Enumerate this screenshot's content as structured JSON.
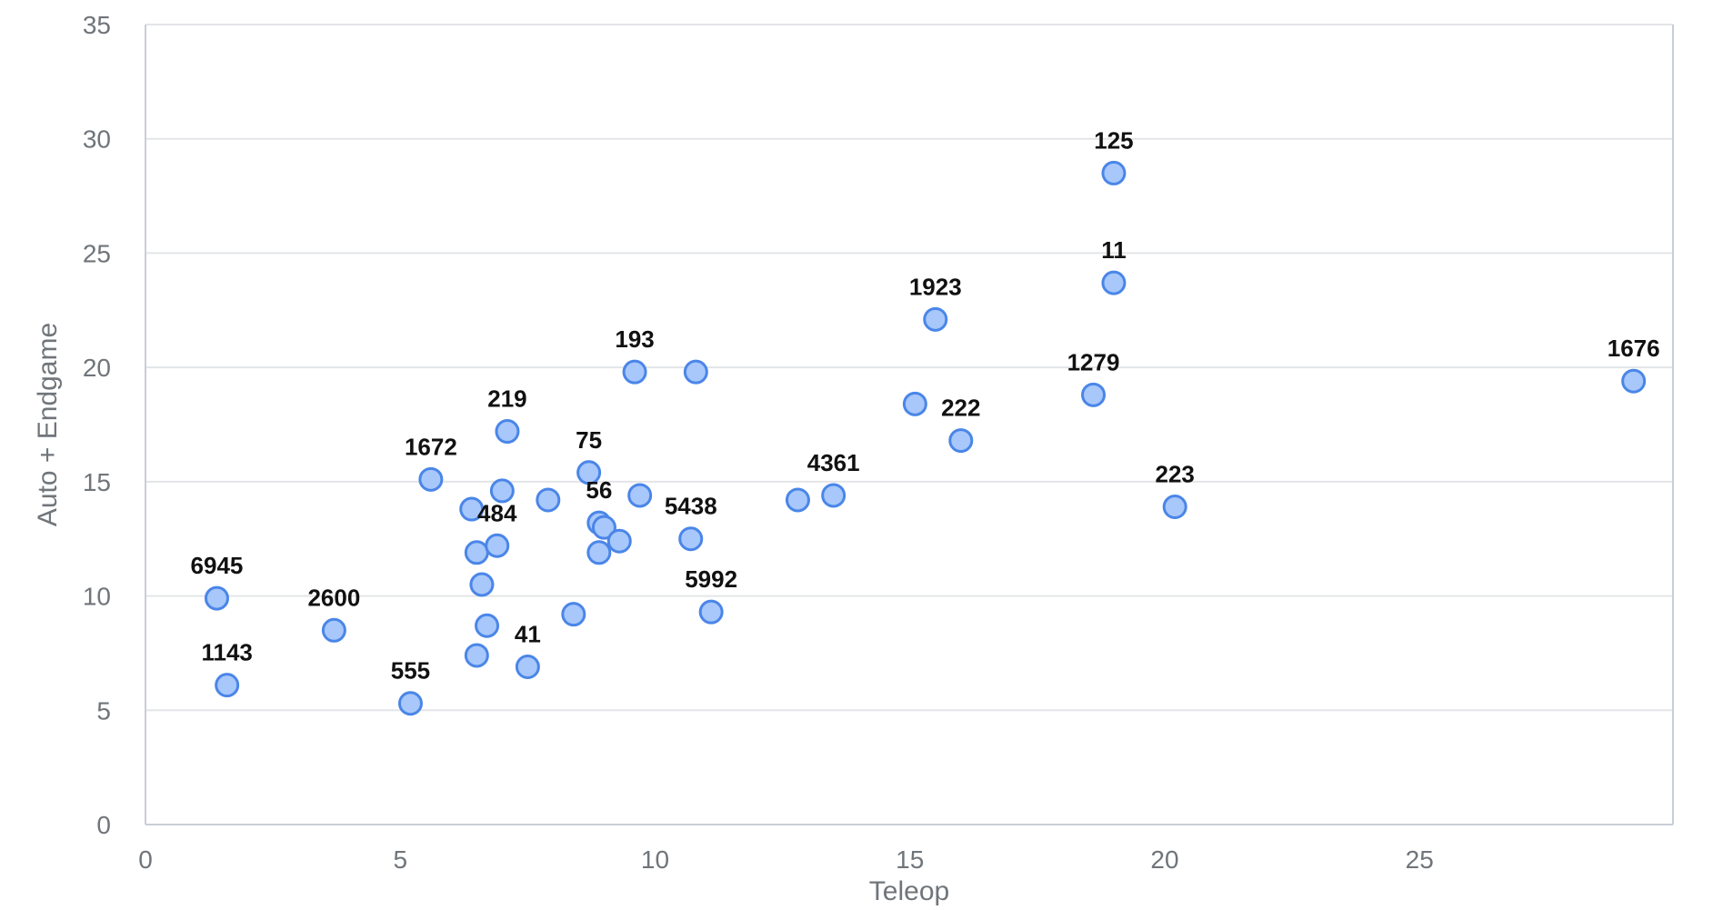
{
  "chart_data": {
    "type": "scatter",
    "xlabel": "Teleop",
    "ylabel": "Auto + Endgame",
    "xlim": [
      0,
      30
    ],
    "ylim": [
      0,
      35
    ],
    "x_ticks": [
      0,
      5,
      10,
      15,
      20,
      25
    ],
    "y_ticks": [
      0,
      5,
      10,
      15,
      20,
      25,
      30,
      35
    ],
    "grid": "horizontal",
    "points": [
      {
        "x": 1.4,
        "y": 9.9,
        "label": "6945"
      },
      {
        "x": 1.6,
        "y": 6.1,
        "label": "1143"
      },
      {
        "x": 3.7,
        "y": 8.5,
        "label": "2600"
      },
      {
        "x": 5.2,
        "y": 5.3,
        "label": "555"
      },
      {
        "x": 5.6,
        "y": 15.1,
        "label": "1672"
      },
      {
        "x": 6.4,
        "y": 13.8,
        "label": ""
      },
      {
        "x": 6.5,
        "y": 11.9,
        "label": ""
      },
      {
        "x": 6.5,
        "y": 7.4,
        "label": ""
      },
      {
        "x": 6.6,
        "y": 10.5,
        "label": ""
      },
      {
        "x": 6.7,
        "y": 8.7,
        "label": ""
      },
      {
        "x": 6.9,
        "y": 12.2,
        "label": "484"
      },
      {
        "x": 7.0,
        "y": 14.6,
        "label": ""
      },
      {
        "x": 7.1,
        "y": 17.2,
        "label": "219"
      },
      {
        "x": 7.5,
        "y": 6.9,
        "label": "41"
      },
      {
        "x": 7.9,
        "y": 14.2,
        "label": ""
      },
      {
        "x": 8.4,
        "y": 9.2,
        "label": ""
      },
      {
        "x": 8.7,
        "y": 15.4,
        "label": "75"
      },
      {
        "x": 8.9,
        "y": 13.2,
        "label": "56"
      },
      {
        "x": 8.9,
        "y": 11.9,
        "label": ""
      },
      {
        "x": 9.0,
        "y": 13.0,
        "label": ""
      },
      {
        "x": 9.3,
        "y": 12.4,
        "label": ""
      },
      {
        "x": 9.6,
        "y": 19.8,
        "label": "193"
      },
      {
        "x": 9.7,
        "y": 14.4,
        "label": ""
      },
      {
        "x": 10.7,
        "y": 12.5,
        "label": "5438"
      },
      {
        "x": 10.8,
        "y": 19.8,
        "label": ""
      },
      {
        "x": 11.1,
        "y": 9.3,
        "label": "5992"
      },
      {
        "x": 12.8,
        "y": 14.2,
        "label": ""
      },
      {
        "x": 13.5,
        "y": 14.4,
        "label": "4361"
      },
      {
        "x": 15.1,
        "y": 18.4,
        "label": ""
      },
      {
        "x": 15.5,
        "y": 22.1,
        "label": "1923"
      },
      {
        "x": 16.0,
        "y": 16.8,
        "label": "222"
      },
      {
        "x": 18.6,
        "y": 18.8,
        "label": "1279"
      },
      {
        "x": 19.0,
        "y": 28.5,
        "label": "125"
      },
      {
        "x": 19.0,
        "y": 23.7,
        "label": "11"
      },
      {
        "x": 20.2,
        "y": 13.9,
        "label": "223"
      },
      {
        "x": 29.2,
        "y": 19.4,
        "label": "1676"
      }
    ]
  },
  "colors": {
    "point_fill": "#a8c7fa",
    "point_stroke": "#4a86e8",
    "grid": "#e3e5e8",
    "axis": "#c9ced6",
    "tick_text": "#70757a",
    "label_text": "#111111"
  }
}
